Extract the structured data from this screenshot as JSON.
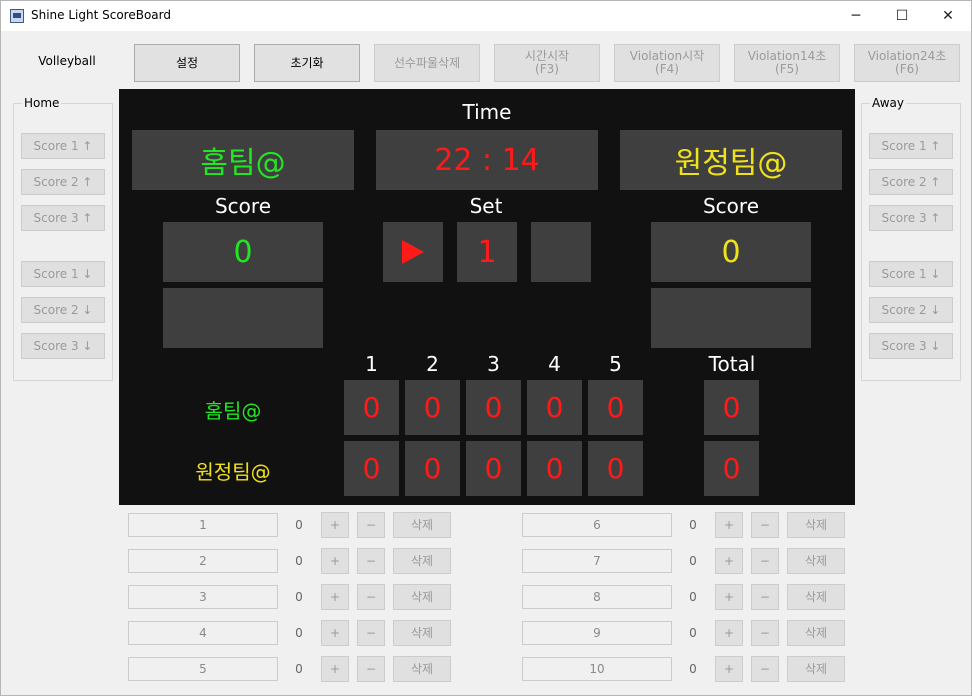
{
  "window": {
    "title": "Shine Light ScoreBoard",
    "controls": {
      "minimize": "─",
      "maximize": "☐",
      "close": "✕"
    }
  },
  "sport": "Volleyball",
  "toolbar": [
    {
      "label": "설정",
      "enabled": true
    },
    {
      "label": "초기화",
      "enabled": true
    },
    {
      "label": "선수파울삭제",
      "enabled": false
    },
    {
      "label": "시간시작\n(F3)",
      "enabled": false
    },
    {
      "label": "Violation시작\n(F4)",
      "enabled": false
    },
    {
      "label": "Violation14초\n(F5)",
      "enabled": false
    },
    {
      "label": "Violation24초\n(F6)",
      "enabled": false
    }
  ],
  "home_panel": {
    "title": "Home",
    "buttons": [
      "Score 1 ↑",
      "Score 2 ↑",
      "Score 3 ↑",
      "Score 1 ↓",
      "Score 2 ↓",
      "Score 3 ↓"
    ]
  },
  "away_panel": {
    "title": "Away",
    "buttons": [
      "Score 1 ↑",
      "Score 2 ↑",
      "Score 3 ↑",
      "Score 1 ↓",
      "Score 2 ↓",
      "Score 3 ↓"
    ]
  },
  "board": {
    "time_label": "Time",
    "time": "22 : 14",
    "home_name": "홈팀@",
    "away_name": "원정팀@",
    "score_label": "Score",
    "set_label": "Set",
    "home_score": "0",
    "away_score": "0",
    "set_value": "1",
    "set_headers": [
      "1",
      "2",
      "3",
      "4",
      "5"
    ],
    "total_label": "Total",
    "home_sets": [
      "0",
      "0",
      "0",
      "0",
      "0"
    ],
    "away_sets": [
      "0",
      "0",
      "0",
      "0",
      "0"
    ],
    "home_total": "0",
    "away_total": "0",
    "colors": {
      "home": "#22e622",
      "away": "#f0e21a",
      "time": "#ff1a1a"
    }
  },
  "players": {
    "left": [
      {
        "name": "1",
        "score": "0"
      },
      {
        "name": "2",
        "score": "0"
      },
      {
        "name": "3",
        "score": "0"
      },
      {
        "name": "4",
        "score": "0"
      },
      {
        "name": "5",
        "score": "0"
      }
    ],
    "right": [
      {
        "name": "6",
        "score": "0"
      },
      {
        "name": "7",
        "score": "0"
      },
      {
        "name": "8",
        "score": "0"
      },
      {
        "name": "9",
        "score": "0"
      },
      {
        "name": "10",
        "score": "0"
      }
    ],
    "plus_label": "+",
    "minus_label": "−",
    "delete_label": "삭제"
  }
}
